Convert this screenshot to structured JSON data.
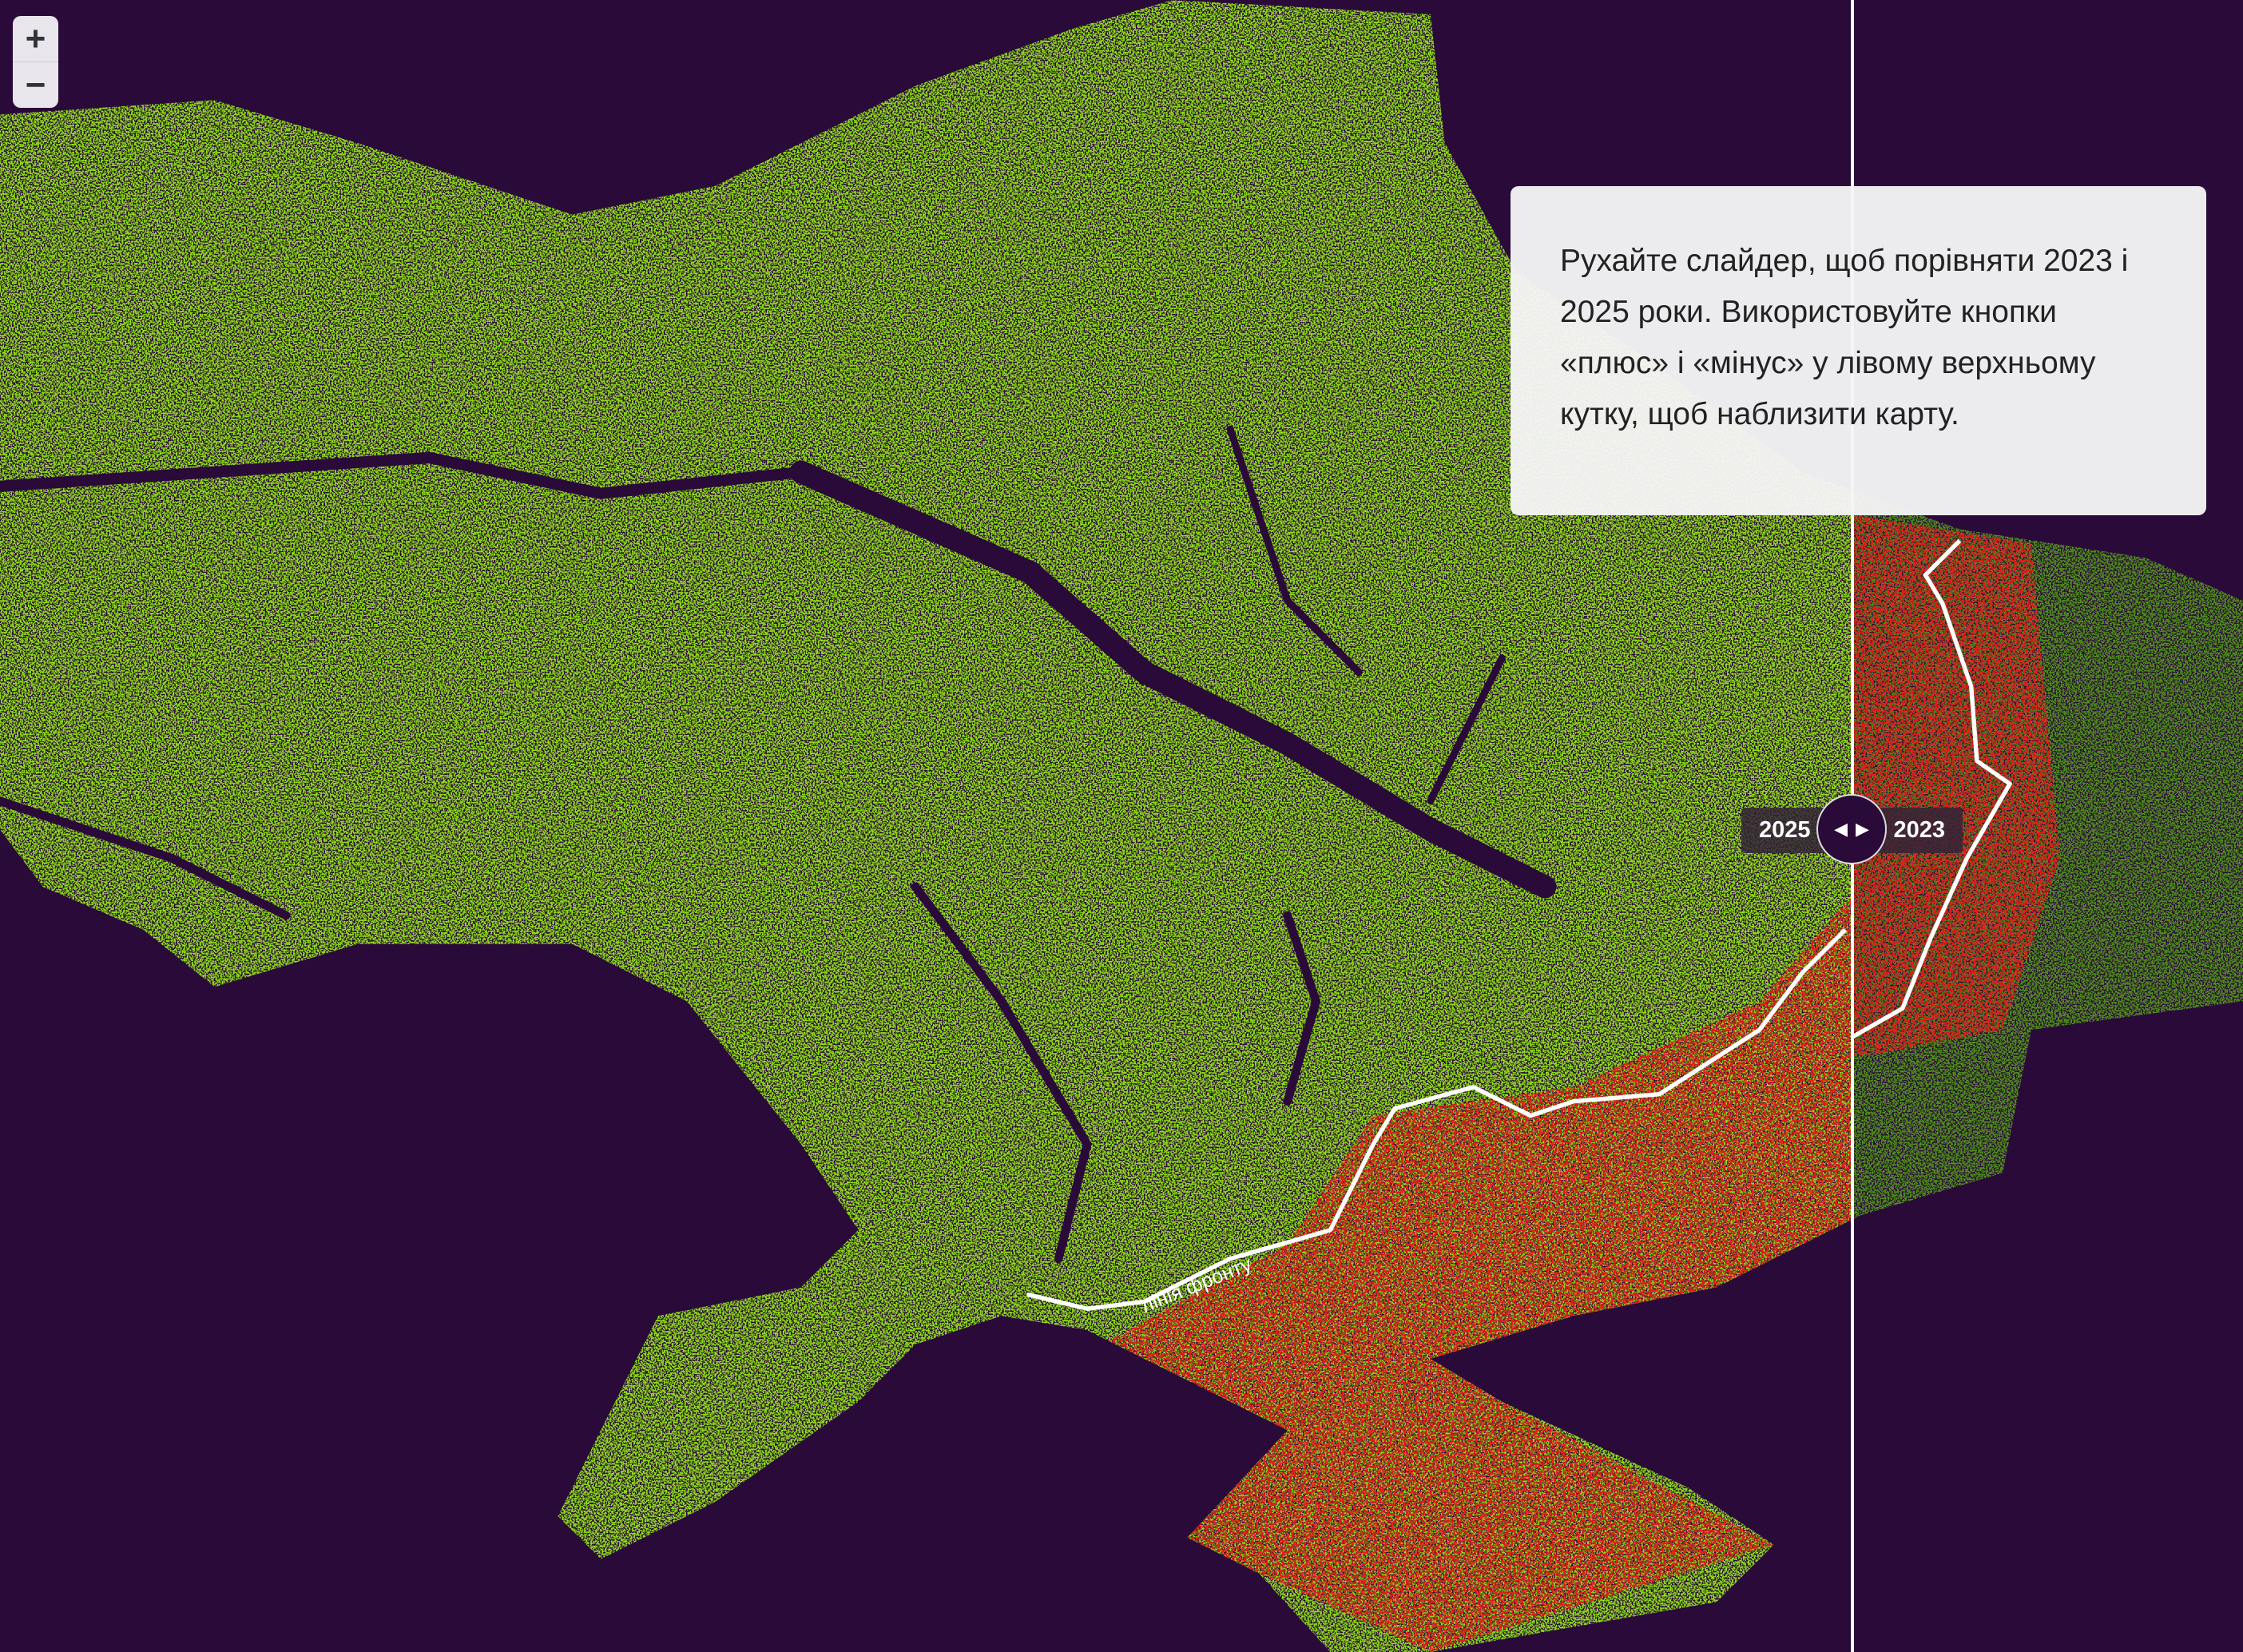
{
  "zoom_controls": {
    "zoom_in_label": "+",
    "zoom_out_label": "−"
  },
  "slider": {
    "left_year": "2025",
    "right_year": "2023",
    "left_arrow": "◀",
    "right_arrow": "▶"
  },
  "tooltip": {
    "text": "Рухайте слайдер, щоб порівняти 2023 і 2025 роки. Використовуйте кнопки «плюс» і «мінус» у лівому верхньому кутку, щоб наблизити карту."
  },
  "map": {
    "front_line_label": "лінія фронту"
  },
  "colors": {
    "background": "#2a0a38",
    "cropland_active": "#8fdc1a",
    "cropland_abandoned": "#e01a1a",
    "cropland_2023_dark": "#4f8f1c"
  }
}
